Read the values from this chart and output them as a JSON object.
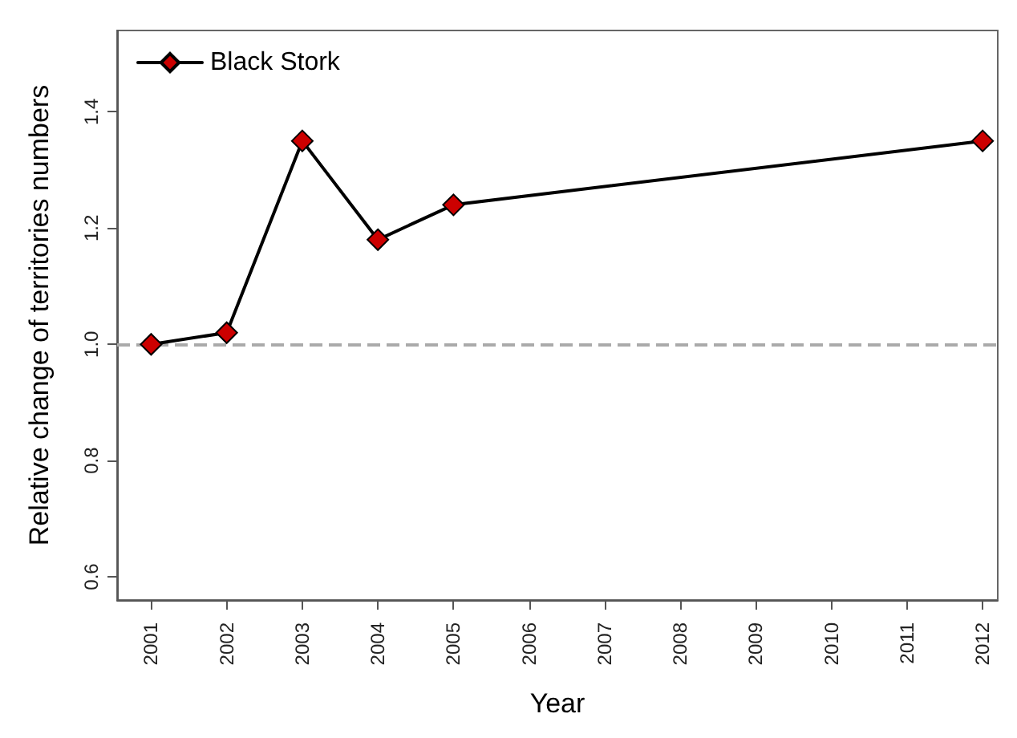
{
  "chart_data": {
    "type": "line",
    "xlabel": "Year",
    "ylabel": "Relative change of territories numbers",
    "x": [
      2001,
      2002,
      2003,
      2004,
      2005,
      2012
    ],
    "series": [
      {
        "name": "Black Stork",
        "color": "#000000",
        "colors": [
          "#cc0000",
          "#cc0000",
          "#cc0000",
          "#cc0000",
          "#cc0000",
          "#cc0000"
        ],
        "values": [
          1.0,
          1.02,
          1.35,
          1.18,
          1.24,
          1.35
        ]
      }
    ],
    "xlim": [
      2000.55,
      2012.2
    ],
    "xticks": [
      2001,
      2002,
      2003,
      2004,
      2005,
      2006,
      2007,
      2008,
      2009,
      2010,
      2011,
      2012
    ],
    "ylim": [
      0.56,
      1.54
    ],
    "yticks": [
      {
        "value": 0.6,
        "label": "0.6"
      },
      {
        "value": 0.8,
        "label": "0.8"
      },
      {
        "value": 1.0,
        "label": "1.0"
      },
      {
        "value": 1.2,
        "label": "1.2"
      },
      {
        "value": 1.4,
        "label": "1.4"
      }
    ],
    "ref_lines": [
      {
        "axis": "y",
        "value": 1.0,
        "color": "#aaaaaa",
        "line_style": "dashed"
      }
    ],
    "marker": "diamond",
    "line_style": "solid",
    "grid": false,
    "legend": "top left"
  }
}
